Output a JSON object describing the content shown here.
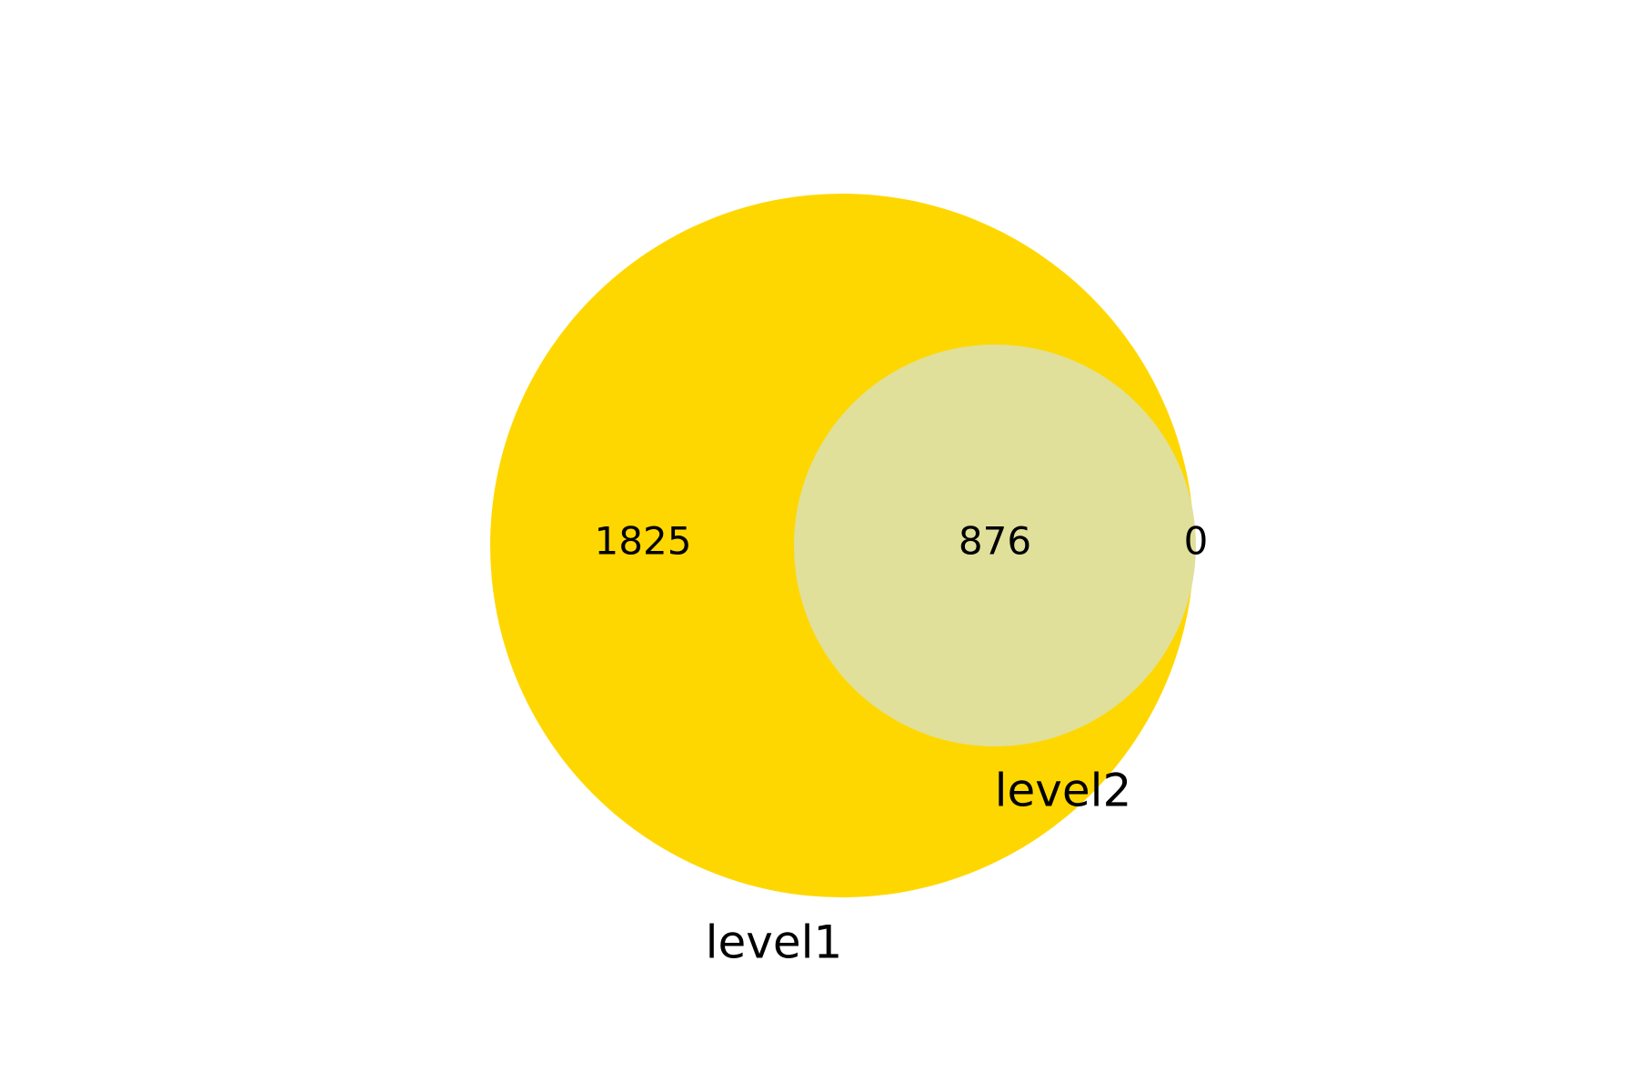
{
  "venn": {
    "sets": [
      {
        "name": "level1",
        "color": "#FFD700"
      },
      {
        "name": "level2",
        "color": "#E0E09B"
      }
    ],
    "regions": {
      "level1_only": "1825",
      "both": "876",
      "level2_only": "0"
    }
  }
}
